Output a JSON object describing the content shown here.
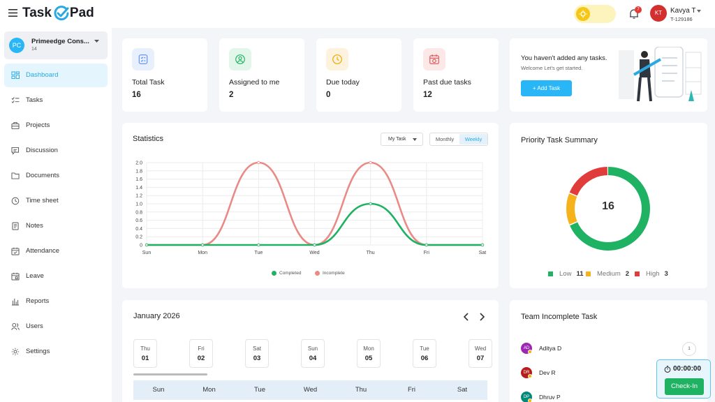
{
  "header": {
    "logo_left": "Task",
    "logo_right": "Pad",
    "notification_count": "7",
    "user": {
      "initials": "KT",
      "name": "Kavya T",
      "id": "T-129186"
    }
  },
  "sidebar": {
    "org": {
      "initials": "PC",
      "name": "Primeedge Cons...",
      "sub": "14"
    },
    "items": [
      {
        "label": "Dashboard",
        "icon": "dashboard-icon",
        "active": true
      },
      {
        "label": "Tasks",
        "icon": "tasks-icon"
      },
      {
        "label": "Projects",
        "icon": "projects-icon"
      },
      {
        "label": "Discussion",
        "icon": "discussion-icon"
      },
      {
        "label": "Documents",
        "icon": "folder-icon"
      },
      {
        "label": "Time sheet",
        "icon": "clock-icon"
      },
      {
        "label": "Notes",
        "icon": "notes-icon"
      },
      {
        "label": "Attendance",
        "icon": "attendance-icon"
      },
      {
        "label": "Leave",
        "icon": "leave-icon"
      },
      {
        "label": "Reports",
        "icon": "reports-icon"
      },
      {
        "label": "Users",
        "icon": "users-icon"
      },
      {
        "label": "Settings",
        "icon": "gear-icon"
      }
    ]
  },
  "stats": [
    {
      "label": "Total Task",
      "value": "16",
      "color": "#5b8def",
      "bg": "#e8f0fd",
      "icon": "checklist-icon"
    },
    {
      "label": "Assigned to me",
      "value": "2",
      "color": "#1eb262",
      "bg": "#e2f6ea",
      "icon": "user-circle-icon"
    },
    {
      "label": "Due today",
      "value": "0",
      "color": "#f0a500",
      "bg": "#fdf3dc",
      "icon": "clock-icon"
    },
    {
      "label": "Past due tasks",
      "value": "12",
      "color": "#e05353",
      "bg": "#fde8e8",
      "icon": "calendar-alert-icon"
    }
  ],
  "welcome": {
    "title": "You haven't added any tasks.",
    "subtitle": "Welcome Let's get started.",
    "button": "+ Add Task"
  },
  "statistics": {
    "title": "Statistics",
    "filter": "My Task",
    "periods": [
      "Monthly",
      "Weekly"
    ],
    "active_period": "Weekly"
  },
  "chart_data": {
    "type": "line",
    "categories": [
      "Sun",
      "Mon",
      "Tue",
      "Wed",
      "Thu",
      "Fri",
      "Sat"
    ],
    "series": [
      {
        "name": "Completed",
        "values": [
          0,
          0,
          0,
          0,
          1,
          0,
          0
        ],
        "color": "#1eb262"
      },
      {
        "name": "Incomplete",
        "values": [
          0,
          0,
          2,
          0,
          2,
          0,
          0
        ],
        "color": "#ea8a86"
      }
    ],
    "ylim": [
      0,
      2
    ],
    "yticks": [
      "0",
      "0.2",
      "0.4",
      "0.6",
      "0.8",
      "1.0",
      "1.2",
      "1.4",
      "1.6",
      "1.8",
      "2.0"
    ],
    "grid": true,
    "legend": "bottom"
  },
  "priority": {
    "title": "Priority Task Summary",
    "total": "16",
    "items": [
      {
        "label": "Low",
        "value": 11,
        "color": "#1eb262"
      },
      {
        "label": "Medium",
        "value": 2,
        "color": "#f5b21b"
      },
      {
        "label": "High",
        "value": 3,
        "color": "#e03c3c"
      }
    ]
  },
  "calendar": {
    "title": "January 2026",
    "days": [
      {
        "name": "Thu",
        "num": "01"
      },
      {
        "name": "Fri",
        "num": "02"
      },
      {
        "name": "Sat",
        "num": "03"
      },
      {
        "name": "Sun",
        "num": "04"
      },
      {
        "name": "Mon",
        "num": "05"
      },
      {
        "name": "Tue",
        "num": "06"
      },
      {
        "name": "Wed",
        "num": "07"
      }
    ],
    "week_headers": [
      "Sun",
      "Mon",
      "Tue",
      "Wed",
      "Thu",
      "Fri",
      "Sat"
    ]
  },
  "team": {
    "title": "Team Incomplete Task",
    "members": [
      {
        "initials": "AD",
        "name": "Aditya D",
        "color": "#9c27b0"
      },
      {
        "initials": "DR",
        "name": "Dev R",
        "color": "#b71c1c"
      },
      {
        "initials": "DP",
        "name": "Dhruv P",
        "color": "#00897b"
      }
    ],
    "count": "1"
  },
  "checkin": {
    "time": "00:00:00",
    "button": "Check-In"
  }
}
